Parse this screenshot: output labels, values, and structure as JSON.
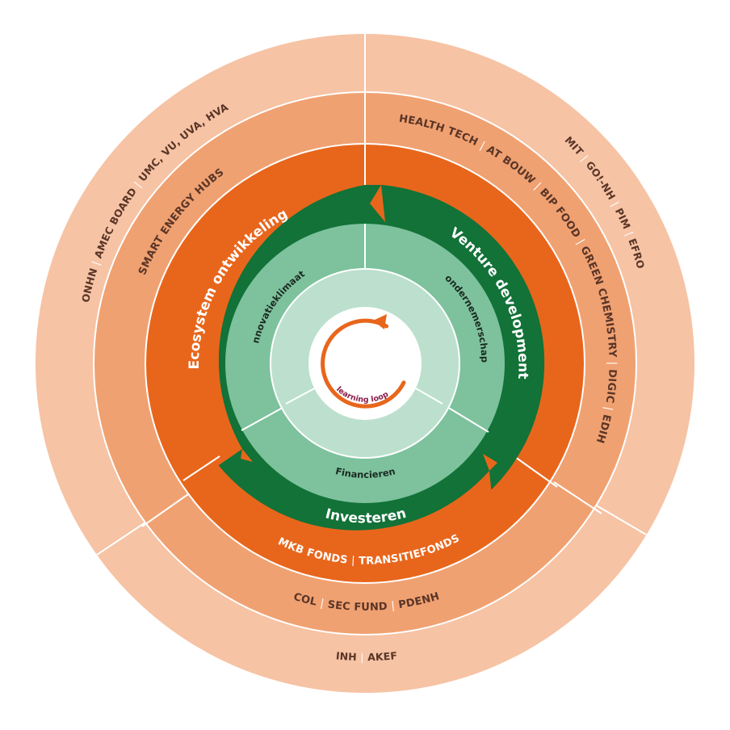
{
  "colors": {
    "ring_outer": "#f6c3a4",
    "ring_second": "#f0a171",
    "ring_orange": "#e8661c",
    "ring_green_dark": "#127237",
    "ring_green_mid": "#7dc29d",
    "ring_green_light": "#bce0cd",
    "center": "#ffffff",
    "loop_arrow": "#e8661c",
    "divider": "#ffffff"
  },
  "center": {
    "label": "learning loop",
    "icon": "circular-arrow-icon"
  },
  "inner_ring": {
    "innovation_climate": "innovatieklimaat",
    "entrepreneurship": "ondernemerschap",
    "financing": "Financieren"
  },
  "green_ring": {
    "ecosystem": "Ecosystem ontwikkeling",
    "venture": "Venture development",
    "investing": "Investeren"
  },
  "orange_ring": {
    "bottom": "MKB FONDS | TRANSITIEFONDS"
  },
  "second_ring": {
    "left": "SMART ENERGY HUBS",
    "right": "HEALTH TECH | AT BOUW | BIP FOOD | GREEN CHEMISTRY | DIGIC | EDIH",
    "bottom": "COL | SEC FUND | PDENH"
  },
  "outer_ring": {
    "left": "ONHN | AMEC BOARD | UMC, VU, UVA, HVA",
    "right": "MIT | GO!-NH | PIM | EFRO",
    "bottom": "INH | AKEF"
  }
}
